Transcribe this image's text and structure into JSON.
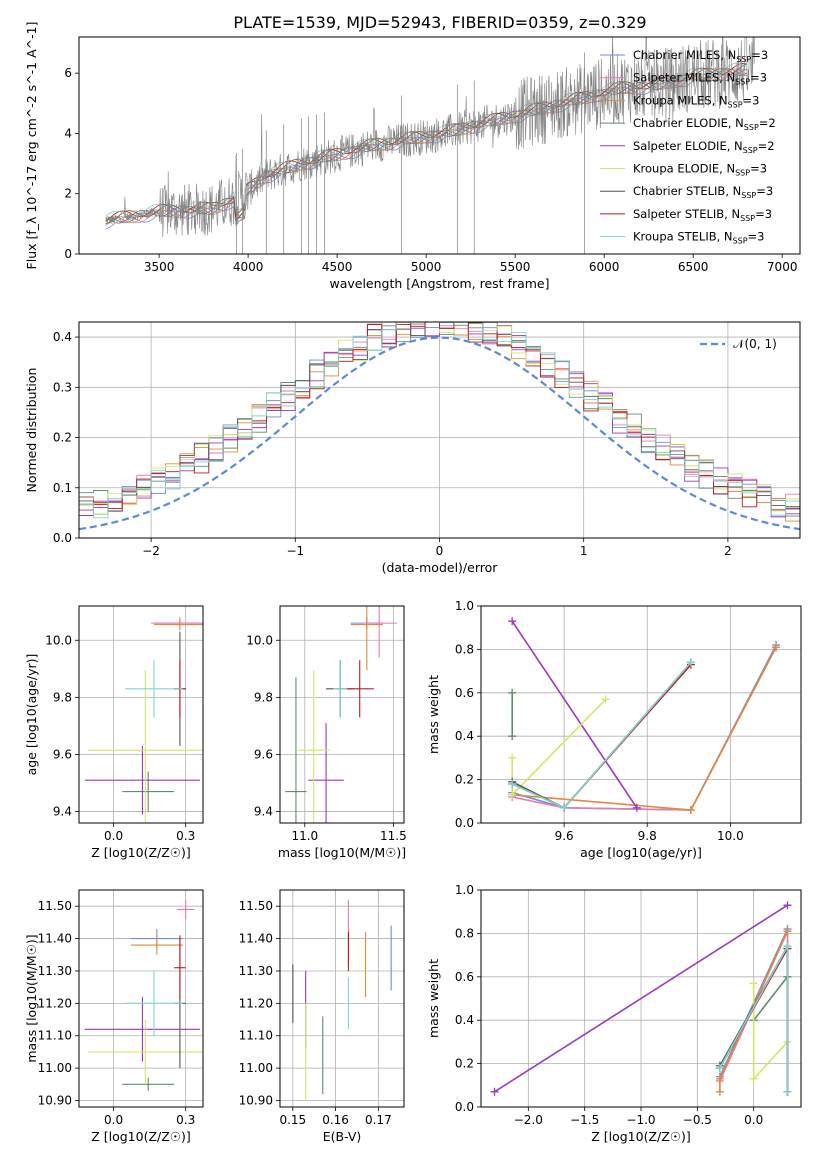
{
  "figure_title": "PLATE=1539, MJD=52943, FIBERID=0359, z=0.329",
  "colors": {
    "Chabrier MILES": "#6a8fd6",
    "Salpeter MILES": "#e57bb6",
    "Kroupa MILES": "#e08a3c",
    "Chabrier ELODIE": "#5f8f6a",
    "Salpeter ELODIE": "#9b3ab8",
    "Kroupa ELODIE": "#d4e66a",
    "Chabrier STELIB": "#555555",
    "Salpeter STELIB": "#b81c24",
    "Kroupa STELIB": "#7fd3d0"
  },
  "chart_data": [
    {
      "id": "spectrum",
      "type": "line",
      "title": "PLATE=1539, MJD=52943, FIBERID=0359, z=0.329",
      "xlabel": "wavelength [Angstrom, rest frame]",
      "ylabel": "Flux [f_λ 10^-17 erg cm^-2 s^-1 A^-1]",
      "xlim": [
        3050,
        7100
      ],
      "ylim": [
        0,
        7.2
      ],
      "xticks": [
        3500,
        4000,
        4500,
        5000,
        5500,
        6000,
        6500,
        7000
      ],
      "yticks": [
        0,
        2,
        4,
        6
      ],
      "legend_position": "top-right",
      "legend": [
        {
          "model": "Chabrier MILES",
          "nssp": "3"
        },
        {
          "model": "Salpeter MILES",
          "nssp": "3"
        },
        {
          "model": "Kroupa MILES",
          "nssp": "3"
        },
        {
          "model": "Chabrier ELODIE",
          "nssp": "2"
        },
        {
          "model": "Salpeter ELODIE",
          "nssp": "2"
        },
        {
          "model": "Kroupa ELODIE",
          "nssp": "3"
        },
        {
          "model": "Chabrier STELIB",
          "nssp": "3"
        },
        {
          "model": "Salpeter STELIB",
          "nssp": "3"
        },
        {
          "model": "Kroupa STELIB",
          "nssp": "3"
        }
      ],
      "data_color": "#808080",
      "continuum_points": [
        [
          3200,
          1.1
        ],
        [
          3500,
          1.4
        ],
        [
          3800,
          1.5
        ],
        [
          3950,
          1.9
        ],
        [
          4100,
          2.6
        ],
        [
          4300,
          3.0
        ],
        [
          4500,
          3.3
        ],
        [
          4700,
          3.6
        ],
        [
          4900,
          3.8
        ],
        [
          5100,
          4.0
        ],
        [
          5300,
          4.3
        ],
        [
          5500,
          4.6
        ],
        [
          5700,
          4.9
        ],
        [
          5900,
          5.2
        ],
        [
          6100,
          5.5
        ],
        [
          6300,
          5.6
        ],
        [
          6500,
          5.9
        ],
        [
          6800,
          6.1
        ]
      ],
      "absorption_lines_x": [
        3934,
        3969,
        4102,
        4200,
        4300,
        4340,
        4384,
        4430,
        4861,
        5175,
        5270,
        5890
      ],
      "grid": false
    },
    {
      "id": "residuals",
      "type": "line",
      "xlabel": "(data-model)/error",
      "ylabel": "Normed distribution",
      "xlim": [
        -2.5,
        2.5
      ],
      "ylim": [
        0,
        0.43
      ],
      "xticks": [
        -2,
        -1,
        0,
        1,
        2
      ],
      "yticks": [
        0.0,
        0.1,
        0.2,
        0.3,
        0.4
      ],
      "legend": "𝒩(0, 1)",
      "legend_position": "top-right",
      "grid": true,
      "hist_bins": 50,
      "hist_range": [
        -2.5,
        2.5
      ]
    },
    {
      "id": "age-vs-Z",
      "type": "scatter",
      "xlabel": "Z [log10(Z/Z☉)]",
      "ylabel": "age  [log10(age/yr)]",
      "xlim": [
        -0.12,
        0.31
      ],
      "ylim": [
        9.36,
        10.12
      ],
      "xticks": [
        0.0,
        0.25
      ],
      "yticks": [
        9.4,
        9.6,
        9.8,
        10.0
      ],
      "grid": true,
      "points": [
        {
          "model": "Chabrier MILES",
          "x": 0.23,
          "xerr": 0.09,
          "y": 10.06,
          "yerr": 0.02
        },
        {
          "model": "Salpeter MILES",
          "x": 0.23,
          "xerr": 0.1,
          "y": 10.06,
          "yerr": 0.02
        },
        {
          "model": "Kroupa MILES",
          "x": 0.23,
          "xerr": 0.09,
          "y": 10.055,
          "yerr": 0.02
        },
        {
          "model": "Chabrier ELODIE",
          "x": 0.12,
          "xerr": 0.09,
          "y": 9.47,
          "yerr": 0.07
        },
        {
          "model": "Salpeter ELODIE",
          "x": 0.1,
          "xerr": 0.2,
          "y": 9.51,
          "yerr": 0.12
        },
        {
          "model": "Kroupa ELODIE",
          "x": 0.11,
          "xerr": 0.2,
          "y": 9.615,
          "yerr": 0.28
        },
        {
          "model": "Chabrier STELIB",
          "x": 0.23,
          "xerr": 0.02,
          "y": 9.83,
          "yerr": 0.2
        },
        {
          "model": "Salpeter STELIB",
          "x": 0.23,
          "xerr": 0.02,
          "y": 9.83,
          "yerr": 0.1
        },
        {
          "model": "Kroupa STELIB",
          "x": 0.14,
          "xerr": 0.1,
          "y": 9.83,
          "yerr": 0.1
        }
      ]
    },
    {
      "id": "age-vs-mass",
      "type": "scatter",
      "xlabel": "mass [log10(M/M☉)]",
      "xlim": [
        10.86,
        11.56
      ],
      "ylim": [
        9.36,
        10.12
      ],
      "xticks": [
        11.0,
        11.5
      ],
      "yticks": [
        9.4,
        9.6,
        9.8,
        10.0
      ],
      "grid": true,
      "points": [
        {
          "model": "Chabrier MILES",
          "x": 11.35,
          "xerr": 0.09,
          "y": 10.06,
          "yerr": 0.02
        },
        {
          "model": "Salpeter MILES",
          "x": 11.42,
          "xerr": 0.1,
          "y": 10.06,
          "yerr": 0.12
        },
        {
          "model": "Kroupa MILES",
          "x": 11.35,
          "xerr": 0.09,
          "y": 10.055,
          "yerr": 0.16
        },
        {
          "model": "Chabrier ELODIE",
          "x": 10.95,
          "xerr": 0.06,
          "y": 9.47,
          "yerr": 0.4
        },
        {
          "model": "Salpeter ELODIE",
          "x": 11.12,
          "xerr": 0.1,
          "y": 9.51,
          "yerr": 0.2
        },
        {
          "model": "Kroupa ELODIE",
          "x": 11.05,
          "xerr": 0.09,
          "y": 9.615,
          "yerr": 0.28
        },
        {
          "model": "Chabrier STELIB",
          "x": 11.2,
          "xerr": 0.08,
          "y": 9.83,
          "yerr": 0.1
        },
        {
          "model": "Salpeter STELIB",
          "x": 11.31,
          "xerr": 0.08,
          "y": 9.83,
          "yerr": 0.1
        },
        {
          "model": "Kroupa STELIB",
          "x": 11.2,
          "xerr": 0.04,
          "y": 9.83,
          "yerr": 0.1
        }
      ]
    },
    {
      "id": "weight-vs-age",
      "type": "line",
      "xlabel": "age  [log10(age/yr)]",
      "ylabel": "mass weight",
      "xlim": [
        9.4,
        10.17
      ],
      "ylim": [
        0,
        1.0
      ],
      "xticks": [
        9.6,
        9.8,
        10.0
      ],
      "yticks": [
        0.0,
        0.2,
        0.4,
        0.6,
        0.8,
        1.0
      ],
      "grid": true,
      "series": [
        {
          "model": "Chabrier MILES",
          "x": [
            9.475,
            9.6,
            9.905,
            10.11
          ],
          "y": [
            0.14,
            0.07,
            0.06,
            0.82
          ]
        },
        {
          "model": "Salpeter MILES",
          "x": [
            9.475,
            9.6,
            9.905,
            10.11
          ],
          "y": [
            0.12,
            0.07,
            0.06,
            0.81
          ]
        },
        {
          "model": "Kroupa MILES",
          "x": [
            9.475,
            9.905,
            10.11
          ],
          "y": [
            0.13,
            0.06,
            0.81
          ]
        },
        {
          "model": "Chabrier ELODIE",
          "x": [
            9.475,
            9.475
          ],
          "y": [
            0.4,
            0.6
          ]
        },
        {
          "model": "Salpeter ELODIE",
          "x": [
            9.475,
            9.775
          ],
          "y": [
            0.93,
            0.07
          ]
        },
        {
          "model": "Kroupa ELODIE",
          "x": [
            9.475,
            9.475,
            9.7
          ],
          "y": [
            0.3,
            0.13,
            0.57
          ]
        },
        {
          "model": "Chabrier STELIB",
          "x": [
            9.475,
            9.6,
            9.905
          ],
          "y": [
            0.19,
            0.07,
            0.74
          ]
        },
        {
          "model": "Salpeter STELIB",
          "x": [
            9.475,
            9.6,
            9.905
          ],
          "y": [
            0.18,
            0.07,
            0.73
          ]
        },
        {
          "model": "Kroupa STELIB",
          "x": [
            9.475,
            9.6,
            9.905
          ],
          "y": [
            0.18,
            0.07,
            0.74
          ]
        }
      ]
    },
    {
      "id": "mass-vs-Z",
      "type": "scatter",
      "xlabel": "Z [log10(Z/Z☉)]",
      "ylabel": "mass [log10(M/M☉)]",
      "xlim": [
        -0.12,
        0.31
      ],
      "ylim": [
        10.88,
        11.55
      ],
      "xticks": [
        0.0,
        0.25
      ],
      "yticks": [
        10.9,
        11.0,
        11.1,
        11.2,
        11.3,
        11.4,
        11.5
      ],
      "grid": true,
      "points": [
        {
          "model": "Chabrier MILES",
          "x": 0.15,
          "xerr": 0.09,
          "y": 11.4,
          "yerr": 0.03
        },
        {
          "model": "Salpeter MILES",
          "x": 0.25,
          "xerr": 0.03,
          "y": 11.49,
          "yerr": 0.03
        },
        {
          "model": "Kroupa MILES",
          "x": 0.15,
          "xerr": 0.09,
          "y": 11.38,
          "yerr": 0.03
        },
        {
          "model": "Chabrier ELODIE",
          "x": 0.12,
          "xerr": 0.09,
          "y": 10.95,
          "yerr": 0.02
        },
        {
          "model": "Salpeter ELODIE",
          "x": 0.1,
          "xerr": 0.2,
          "y": 11.12,
          "yerr": 0.1
        },
        {
          "model": "Kroupa ELODIE",
          "x": 0.11,
          "xerr": 0.2,
          "y": 11.05,
          "yerr": 0.1
        },
        {
          "model": "Chabrier STELIB",
          "x": 0.23,
          "xerr": 0.02,
          "y": 11.2,
          "yerr": 0.2
        },
        {
          "model": "Salpeter STELIB",
          "x": 0.23,
          "xerr": 0.02,
          "y": 11.31,
          "yerr": 0.1
        },
        {
          "model": "Kroupa STELIB",
          "x": 0.14,
          "xerr": 0.1,
          "y": 11.2,
          "yerr": 0.1
        }
      ]
    },
    {
      "id": "mass-vs-ebv",
      "type": "scatter",
      "xlabel": "E(B-V)",
      "xlim": [
        0.147,
        0.176
      ],
      "ylim": [
        10.88,
        11.55
      ],
      "xticks": [
        0.15,
        0.16,
        0.17
      ],
      "yticks": [
        10.9,
        11.0,
        11.1,
        11.2,
        11.3,
        11.4,
        11.5
      ],
      "grid": true,
      "points": [
        {
          "model": "Chabrier MILES",
          "x": 0.173,
          "y": 11.34,
          "yerr": 0.1
        },
        {
          "model": "Salpeter MILES",
          "x": 0.163,
          "y": 11.42,
          "yerr": 0.1
        },
        {
          "model": "Kroupa MILES",
          "x": 0.167,
          "y": 11.32,
          "yerr": 0.1
        },
        {
          "model": "Chabrier ELODIE",
          "x": 0.157,
          "y": 11.04,
          "yerr": 0.12
        },
        {
          "model": "Salpeter ELODIE",
          "x": 0.153,
          "y": 11.18,
          "yerr": 0.12
        },
        {
          "model": "Kroupa ELODIE",
          "x": 0.153,
          "y": 11.05,
          "yerr": 0.15
        },
        {
          "model": "Chabrier STELIB",
          "x": 0.15,
          "y": 11.23,
          "yerr": 0.09
        },
        {
          "model": "Salpeter STELIB",
          "x": 0.163,
          "y": 11.36,
          "yerr": 0.06
        },
        {
          "model": "Kroupa STELIB",
          "x": 0.163,
          "y": 11.2,
          "yerr": 0.08
        }
      ]
    },
    {
      "id": "weight-vs-Z",
      "type": "line",
      "xlabel": "Z [log10(Z/Z☉)]",
      "ylabel": "mass weight",
      "xlim": [
        -2.42,
        0.42
      ],
      "ylim": [
        0,
        1.0
      ],
      "xticks": [
        -2.0,
        -1.5,
        -1.0,
        -0.5,
        0.0
      ],
      "yticks": [
        0.0,
        0.2,
        0.4,
        0.6,
        0.8,
        1.0
      ],
      "grid": true,
      "series": [
        {
          "model": "Chabrier MILES",
          "x": [
            -0.3,
            0.3
          ],
          "y": [
            0.14,
            0.82
          ]
        },
        {
          "model": "Salpeter MILES",
          "x": [
            -0.3,
            0.3,
            0.3
          ],
          "y": [
            0.12,
            0.81,
            0.07
          ]
        },
        {
          "model": "Kroupa MILES",
          "x": [
            -0.3,
            -0.3,
            0.3
          ],
          "y": [
            0.07,
            0.13,
            0.81
          ]
        },
        {
          "model": "Chabrier ELODIE",
          "x": [
            0.0,
            0.3
          ],
          "y": [
            0.4,
            0.6
          ]
        },
        {
          "model": "Salpeter ELODIE",
          "x": [
            -2.3,
            0.3
          ],
          "y": [
            0.07,
            0.93
          ]
        },
        {
          "model": "Kroupa ELODIE",
          "x": [
            0.0,
            0.0,
            0.3
          ],
          "y": [
            0.57,
            0.13,
            0.3
          ]
        },
        {
          "model": "Chabrier STELIB",
          "x": [
            -0.3,
            0.3,
            0.3
          ],
          "y": [
            0.19,
            0.74,
            0.07
          ]
        },
        {
          "model": "Salpeter STELIB",
          "x": [
            -0.3,
            0.3,
            0.3
          ],
          "y": [
            0.18,
            0.73,
            0.07
          ]
        },
        {
          "model": "Kroupa STELIB",
          "x": [
            -0.3,
            0.3,
            0.3
          ],
          "y": [
            0.18,
            0.74,
            0.07
          ]
        }
      ]
    }
  ]
}
